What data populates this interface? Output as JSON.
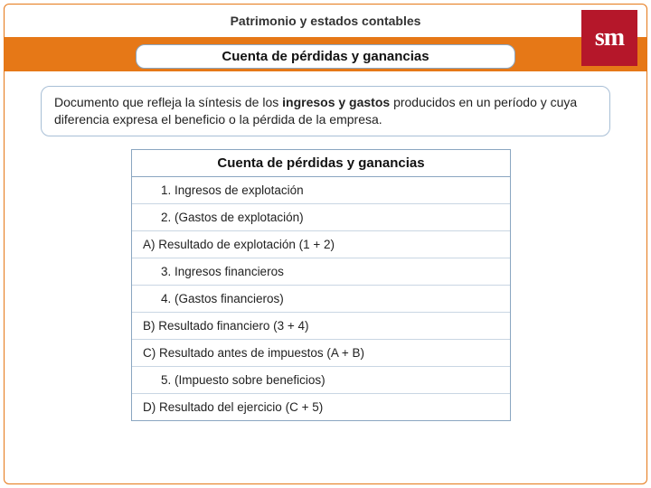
{
  "slide": {
    "title_top": "Patrimonio y estados contables",
    "title_pill": "Cuenta de pérdidas y ganancias",
    "description_pre": "Documento que refleja la síntesis de los ",
    "description_bold": "ingresos y gastos",
    "description_post": " producidos en un período y cuya diferencia expresa el beneficio o la pérdida de la empresa.",
    "logo_text": "sm"
  },
  "table": {
    "title": "Cuenta de pérdidas y ganancias",
    "rows": [
      {
        "text": "1. Ingresos de explotación",
        "indent": true
      },
      {
        "text": "2. (Gastos de explotación)",
        "indent": true
      },
      {
        "text": "A) Resultado de explotación (1 + 2)",
        "indent": false
      },
      {
        "text": "3. Ingresos financieros",
        "indent": true
      },
      {
        "text": "4. (Gastos financieros)",
        "indent": true
      },
      {
        "text": "B) Resultado financiero (3 + 4)",
        "indent": false
      },
      {
        "text": "C) Resultado antes de impuestos (A + B)",
        "indent": false
      },
      {
        "text": "5. (Impuesto sobre beneficios)",
        "indent": true
      },
      {
        "text": "D) Resultado del ejercicio (C + 5)",
        "indent": false
      }
    ]
  },
  "colors": {
    "brand_orange": "#e67817",
    "brand_red": "#b5172a",
    "border_blue": "#8aa6c1",
    "row_border": "#c9d6e3"
  }
}
